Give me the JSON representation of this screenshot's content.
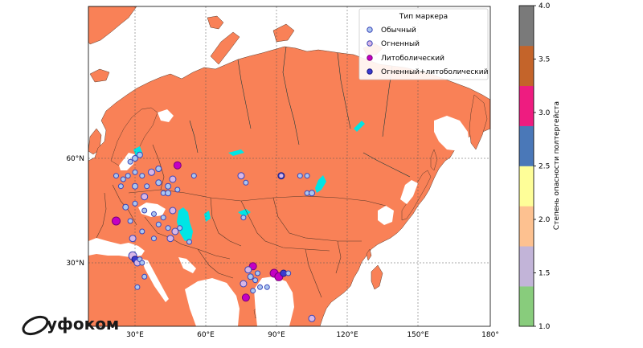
{
  "map": {
    "longitude_ticks": [
      "30°E",
      "60°E",
      "90°E",
      "120°E",
      "150°E",
      "180°"
    ],
    "latitude_ticks": [
      "60°N",
      "30°N"
    ],
    "land_color": "#f98157",
    "water_color": "#00e5e5",
    "border_color": "#5a3a2a",
    "river_color": "#1a3a3a"
  },
  "legend": {
    "title": "Тип маркера",
    "items": [
      {
        "label": "Обычный",
        "fill": "#aac6f0",
        "edge": "#3a45b8"
      },
      {
        "label": "Огненный",
        "fill": "#d8b6e6",
        "edge": "#3a45b8"
      },
      {
        "label": "Литоболический",
        "fill": "#c400c4",
        "edge": "#7a007a"
      },
      {
        "label": "Огненный+литоболический",
        "fill": "#3a3ad0",
        "edge": "#1a1a80"
      }
    ]
  },
  "colorbar": {
    "label": "Степень опасности полтергейста",
    "ticks": [
      "1.0",
      "1.5",
      "2.0",
      "2.5",
      "3.0",
      "3.5",
      "4.0"
    ],
    "segments": [
      "#88cc7c",
      "#c2b4d8",
      "#fdc190",
      "#fefe98",
      "#4a78b8",
      "#ee1c80",
      "#c4642a",
      "#7a7a7a"
    ]
  },
  "watermark": {
    "text": "уфоком"
  }
}
